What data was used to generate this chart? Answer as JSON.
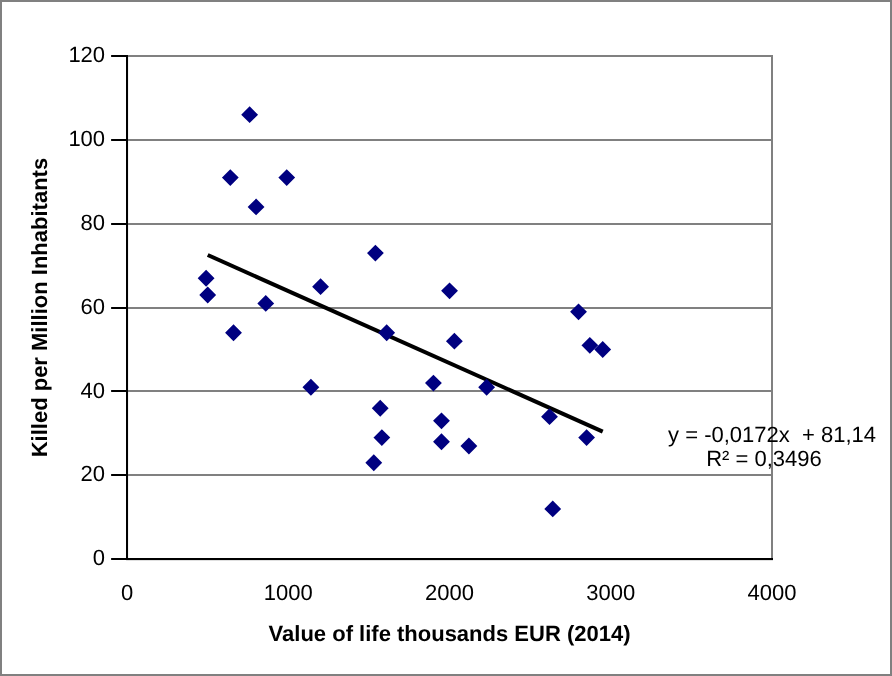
{
  "chart_data": {
    "type": "scatter",
    "xlabel": "Value of life thousands EUR (2014)",
    "ylabel": "Killed per Million Inhabitants",
    "x": [
      490,
      500,
      640,
      660,
      760,
      800,
      860,
      990,
      1140,
      1200,
      1530,
      1540,
      1570,
      1580,
      1610,
      1900,
      1950,
      1950,
      2000,
      2030,
      2120,
      2230,
      2620,
      2640,
      2800,
      2850,
      2870,
      2950
    ],
    "series": [
      {
        "color": "#000080",
        "values": [
          67,
          63,
          91,
          54,
          106,
          84,
          61,
          91,
          41,
          65,
          23,
          73,
          36,
          29,
          54,
          42,
          33,
          28,
          64,
          52,
          27,
          41,
          34,
          12,
          59,
          29,
          51,
          50
        ]
      },
      {
        "type": "line",
        "color": "#000000",
        "x": [
          500,
          2950
        ],
        "values": [
          72.54,
          30.43
        ],
        "marker": "none"
      }
    ],
    "xlim": [
      0,
      4000
    ],
    "xticks": [
      0,
      1000,
      2000,
      3000,
      4000
    ],
    "ylim": [
      0,
      120
    ],
    "yticks": [
      0,
      20,
      40,
      60,
      80,
      100,
      120
    ],
    "grid": "y",
    "legend": false,
    "marker": "diamond",
    "annotations": [
      "y = -0,0172x  + 81,14",
      "R² = 0,3496"
    ]
  }
}
